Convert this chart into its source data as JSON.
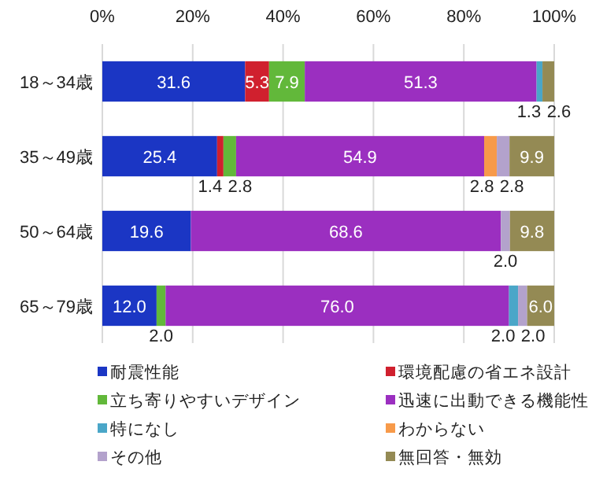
{
  "chart_data": {
    "type": "bar",
    "orientation": "horizontal",
    "stacked": true,
    "categories": [
      "18～34歳",
      "35～49歳",
      "50～64歳",
      "65～79歳"
    ],
    "series": [
      {
        "name": "耐震性能",
        "color": "#1b36c4",
        "values": [
          31.6,
          25.4,
          19.6,
          12.0
        ],
        "value_labels": [
          "31.6",
          "25.4",
          "19.6",
          "12.0"
        ]
      },
      {
        "name": "環境配慮の省エネ設計",
        "color": "#d0202e",
        "values": [
          5.3,
          1.4,
          null,
          null
        ],
        "value_labels": [
          "5.3",
          "1.4",
          null,
          null
        ]
      },
      {
        "name": "立ち寄りやすいデザイン",
        "color": "#62b83a",
        "values": [
          7.9,
          2.8,
          null,
          2.0
        ],
        "value_labels": [
          "7.9",
          "2.8",
          null,
          "2.0"
        ]
      },
      {
        "name": "迅速に出動できる機能性",
        "color": "#9b2fc0",
        "values": [
          51.3,
          54.9,
          68.6,
          76.0
        ],
        "value_labels": [
          "51.3",
          "54.9",
          "68.6",
          "76.0"
        ]
      },
      {
        "name": "特になし",
        "color": "#4aa6c8",
        "values": [
          1.3,
          null,
          null,
          2.0
        ],
        "value_labels": [
          "1.3",
          null,
          null,
          "2.0"
        ]
      },
      {
        "name": "わからない",
        "color": "#f79a4a",
        "values": [
          null,
          2.8,
          null,
          null
        ],
        "value_labels": [
          null,
          "2.8",
          null,
          null
        ]
      },
      {
        "name": "その他",
        "color": "#b3a2cc",
        "values": [
          null,
          2.8,
          2.0,
          2.0
        ],
        "value_labels": [
          null,
          "2.8",
          "2.0",
          "2.0"
        ]
      },
      {
        "name": "無回答・無効",
        "color": "#948a54",
        "values": [
          2.6,
          9.9,
          9.8,
          6.0
        ],
        "value_labels": [
          "2.6",
          "9.9",
          "9.8",
          "6.0"
        ]
      }
    ],
    "xlim": [
      0,
      100
    ],
    "xticks": [
      {
        "value": 0,
        "label": "0%"
      },
      {
        "value": 20,
        "label": "20%"
      },
      {
        "value": 40,
        "label": "40%"
      },
      {
        "value": 60,
        "label": "60%"
      },
      {
        "value": 80,
        "label": "80%"
      },
      {
        "value": 100,
        "label": "100%"
      }
    ],
    "grid": "x",
    "legend": "bottom"
  }
}
